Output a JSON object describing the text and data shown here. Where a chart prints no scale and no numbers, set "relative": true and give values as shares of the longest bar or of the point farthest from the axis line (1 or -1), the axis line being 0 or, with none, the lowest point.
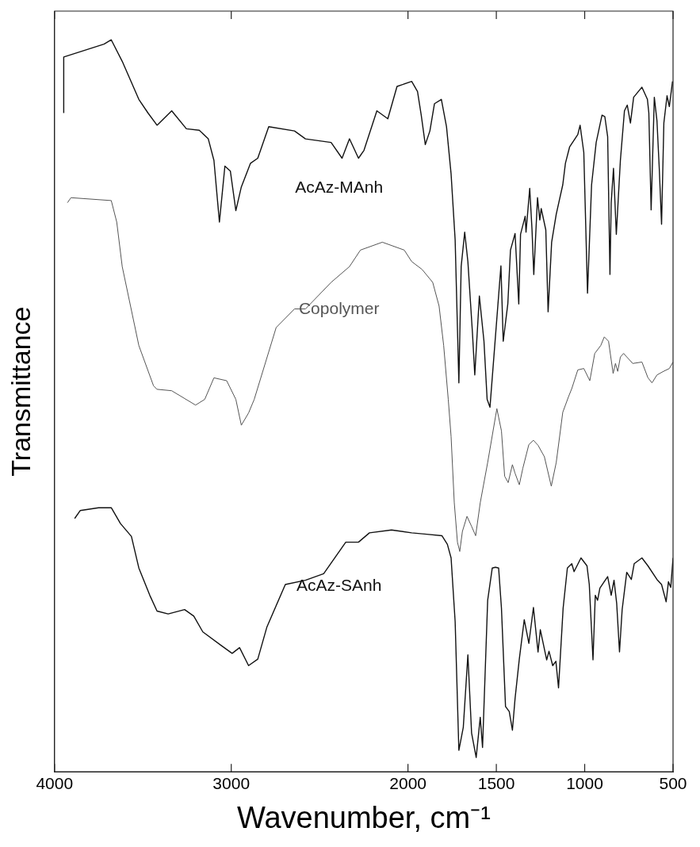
{
  "chart_data": {
    "type": "line",
    "relative": true,
    "xlabel": "Wavenumber, cm⁻¹",
    "ylabel": "Transmittance",
    "xlim": [
      4000,
      500
    ],
    "xticks": [
      4000,
      3000,
      2000,
      1500,
      1000,
      500
    ],
    "legend": false,
    "grid": false,
    "marker": "none",
    "line_style": "solid",
    "series": [
      {
        "name": "AcAz-MAnh",
        "color": "#111111",
        "x": [
          3948,
          3948,
          3720,
          3679,
          3617,
          3523,
          3471,
          3420,
          3337,
          3254,
          3181,
          3130,
          3098,
          3067,
          3036,
          3005,
          2974,
          2943,
          2891,
          2850,
          2788,
          2642,
          2580,
          2435,
          2373,
          2331,
          2280,
          2249,
          2176,
          2114,
          2062,
          1979,
          1946,
          1925,
          1902,
          1876,
          1850,
          1811,
          1782,
          1756,
          1733,
          1712,
          1699,
          1679,
          1661,
          1635,
          1622,
          1596,
          1570,
          1552,
          1536,
          1474,
          1461,
          1435,
          1420,
          1394,
          1373,
          1363,
          1337,
          1332,
          1311,
          1298,
          1288,
          1267,
          1254,
          1246,
          1220,
          1207,
          1187,
          1161,
          1124,
          1109,
          1085,
          1039,
          1026,
          1005,
          984,
          961,
          935,
          902,
          886,
          870,
          857,
          850,
          837,
          821,
          798,
          775,
          759,
          741,
          723,
          676,
          645,
          637,
          624,
          606,
          591,
          578,
          565,
          552,
          534,
          521,
          503
        ],
        "values": [
          0.898,
          0.976,
          0.994,
          1,
          0.97,
          0.917,
          0.898,
          0.881,
          0.901,
          0.876,
          0.874,
          0.862,
          0.832,
          0.746,
          0.824,
          0.817,
          0.762,
          0.795,
          0.828,
          0.835,
          0.879,
          0.873,
          0.862,
          0.857,
          0.835,
          0.862,
          0.835,
          0.846,
          0.901,
          0.89,
          0.935,
          0.942,
          0.928,
          0.895,
          0.854,
          0.873,
          0.911,
          0.917,
          0.879,
          0.813,
          0.721,
          0.522,
          0.684,
          0.732,
          0.691,
          0.591,
          0.533,
          0.643,
          0.58,
          0.499,
          0.488,
          0.685,
          0.58,
          0.632,
          0.707,
          0.73,
          0.632,
          0.729,
          0.754,
          0.732,
          0.793,
          0.735,
          0.673,
          0.78,
          0.749,
          0.765,
          0.735,
          0.621,
          0.718,
          0.757,
          0.798,
          0.828,
          0.851,
          0.868,
          0.881,
          0.843,
          0.647,
          0.798,
          0.857,
          0.895,
          0.893,
          0.865,
          0.673,
          0.773,
          0.821,
          0.729,
          0.832,
          0.901,
          0.909,
          0.884,
          0.92,
          0.934,
          0.917,
          0.898,
          0.763,
          0.92,
          0.887,
          0.821,
          0.743,
          0.884,
          0.922,
          0.907,
          0.942
        ]
      },
      {
        "name": "Copolymer",
        "color": "#555555",
        "x": [
          3927,
          3907,
          3679,
          3648,
          3617,
          3523,
          3440,
          3420,
          3337,
          3202,
          3150,
          3098,
          3026,
          2974,
          2943,
          2902,
          2870,
          2746,
          2642,
          2580,
          2435,
          2331,
          2269,
          2145,
          2021,
          1979,
          1920,
          1860,
          1824,
          1798,
          1772,
          1756,
          1738,
          1720,
          1707,
          1692,
          1666,
          1640,
          1617,
          1591,
          1549,
          1497,
          1471,
          1453,
          1433,
          1409,
          1394,
          1370,
          1350,
          1316,
          1290,
          1264,
          1228,
          1189,
          1161,
          1124,
          1091,
          1073,
          1039,
          1005,
          971,
          943,
          909,
          889,
          865,
          839,
          826,
          813,
          798,
          780,
          728,
          676,
          642,
          619,
          591,
          554,
          521,
          500
        ],
        "values": [
          0.773,
          0.78,
          0.776,
          0.746,
          0.684,
          0.574,
          0.518,
          0.513,
          0.511,
          0.491,
          0.499,
          0.529,
          0.525,
          0.499,
          0.463,
          0.48,
          0.499,
          0.599,
          0.625,
          0.625,
          0.662,
          0.684,
          0.707,
          0.718,
          0.707,
          0.691,
          0.68,
          0.662,
          0.629,
          0.574,
          0.499,
          0.447,
          0.355,
          0.3,
          0.287,
          0.315,
          0.336,
          0.322,
          0.309,
          0.355,
          0.411,
          0.486,
          0.455,
          0.392,
          0.383,
          0.408,
          0.396,
          0.38,
          0.403,
          0.436,
          0.442,
          0.435,
          0.419,
          0.378,
          0.411,
          0.481,
          0.503,
          0.514,
          0.54,
          0.542,
          0.525,
          0.563,
          0.574,
          0.586,
          0.58,
          0.535,
          0.549,
          0.538,
          0.558,
          0.563,
          0.549,
          0.551,
          0.529,
          0.522,
          0.533,
          0.538,
          0.542,
          0.551
        ]
      },
      {
        "name": "AcAz-SAnh",
        "color": "#111111",
        "x": [
          3886,
          3855,
          3751,
          3679,
          3627,
          3565,
          3523,
          3461,
          3420,
          3357,
          3264,
          3212,
          3161,
          3057,
          2995,
          2953,
          2902,
          2850,
          2798,
          2694,
          2580,
          2477,
          2352,
          2280,
          2218,
          2093,
          1979,
          1894,
          1808,
          1777,
          1756,
          1733,
          1712,
          1687,
          1661,
          1640,
          1614,
          1591,
          1578,
          1549,
          1523,
          1505,
          1487,
          1471,
          1448,
          1427,
          1409,
          1394,
          1370,
          1342,
          1316,
          1290,
          1264,
          1251,
          1215,
          1202,
          1181,
          1163,
          1148,
          1122,
          1098,
          1073,
          1060,
          1021,
          987,
          974,
          953,
          940,
          927,
          914,
          870,
          850,
          834,
          819,
          803,
          788,
          762,
          736,
          720,
          676,
          642,
          591,
          565,
          539,
          526,
          513,
          500
        ],
        "values": [
          0.333,
          0.344,
          0.348,
          0.348,
          0.326,
          0.308,
          0.264,
          0.226,
          0.204,
          0.2,
          0.206,
          0.197,
          0.175,
          0.156,
          0.145,
          0.153,
          0.128,
          0.137,
          0.182,
          0.241,
          0.247,
          0.256,
          0.3,
          0.3,
          0.313,
          0.317,
          0.313,
          0.311,
          0.309,
          0.297,
          0.278,
          0.189,
          0.01,
          0.042,
          0.143,
          0.034,
          0,
          0.056,
          0.014,
          0.219,
          0.264,
          0.265,
          0.264,
          0.208,
          0.071,
          0.064,
          0.038,
          0.082,
          0.137,
          0.192,
          0.159,
          0.209,
          0.147,
          0.178,
          0.136,
          0.148,
          0.128,
          0.134,
          0.097,
          0.208,
          0.264,
          0.27,
          0.259,
          0.278,
          0.267,
          0.241,
          0.136,
          0.226,
          0.219,
          0.236,
          0.252,
          0.226,
          0.247,
          0.215,
          0.147,
          0.206,
          0.258,
          0.248,
          0.27,
          0.278,
          0.267,
          0.248,
          0.241,
          0.217,
          0.245,
          0.237,
          0.278
        ]
      }
    ]
  }
}
